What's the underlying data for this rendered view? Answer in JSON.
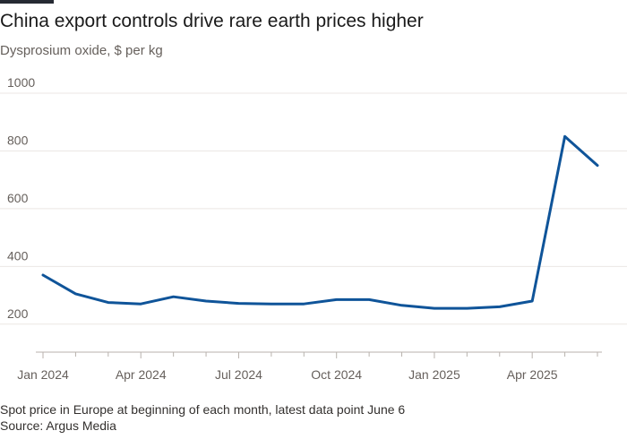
{
  "chart_data": {
    "type": "line",
    "title": "China export controls drive rare earth prices higher",
    "subtitle": "Dysprosium oxide, $ per kg",
    "xlabel": "",
    "ylabel": "",
    "x": [
      "Jan 2024",
      "Feb 2024",
      "Mar 2024",
      "Apr 2024",
      "May 2024",
      "Jun 2024",
      "Jul 2024",
      "Aug 2024",
      "Sep 2024",
      "Oct 2024",
      "Nov 2024",
      "Dec 2024",
      "Jan 2025",
      "Feb 2025",
      "Mar 2025",
      "Apr 2025",
      "May 2025",
      "Jun 2025"
    ],
    "series": [
      {
        "values": [
          370,
          305,
          275,
          270,
          295,
          280,
          272,
          270,
          270,
          285,
          285,
          265,
          255,
          255,
          260,
          280,
          850,
          750
        ]
      }
    ],
    "x_tick_labels": [
      "Jan 2024",
      "Apr 2024",
      "Jul 2024",
      "Oct 2024",
      "Jan 2025",
      "Apr 2025"
    ],
    "x_tick_index": [
      0,
      3,
      6,
      9,
      12,
      15
    ],
    "y_ticks": [
      200,
      400,
      600,
      800,
      1000
    ],
    "ylim": [
      100,
      1000
    ],
    "grid": true,
    "line_color": "#0f5499",
    "footnote": "Spot price in Europe at beginning of each month, latest data point June 6",
    "source": "Source: Argus Media"
  }
}
